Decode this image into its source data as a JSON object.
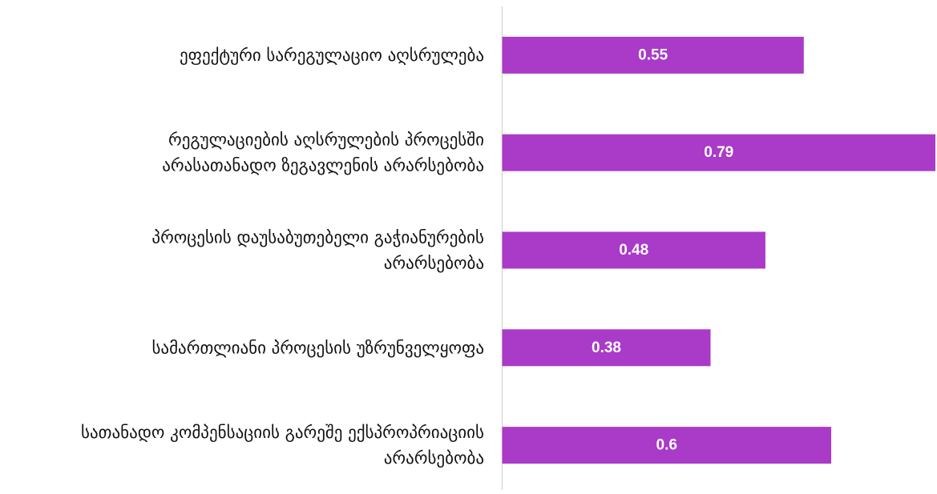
{
  "chart_data": {
    "type": "bar",
    "orientation": "horizontal",
    "categories": [
      [
        "ეფექტური სარეგულაციო აღსრულება"
      ],
      [
        "რეგულაციების აღსრულების პროცესში",
        "არასათანადო ზეგავლენის არარსებობა"
      ],
      [
        "პროცესის დაუსაბუთებელი გაჭიანურების",
        "არარსებობა"
      ],
      [
        "სამართლიანი პროცესის უზრუნველყოფა"
      ],
      [
        "სათანადო კომპენსაციის გარეშე ექსპროპრიაციის",
        "არარსებობა"
      ]
    ],
    "values": [
      0.55,
      0.79,
      0.48,
      0.38,
      0.6
    ],
    "value_labels": [
      "0.55",
      "0.79",
      "0.48",
      "0.38",
      "0.6"
    ],
    "xlim": [
      0,
      0.79
    ],
    "bar_color": "#AA3AC8",
    "value_label_color": "#ffffff",
    "axis_color": "#d9d9d9",
    "grid": false,
    "legend": "none",
    "title": "",
    "xlabel": "",
    "ylabel": ""
  }
}
